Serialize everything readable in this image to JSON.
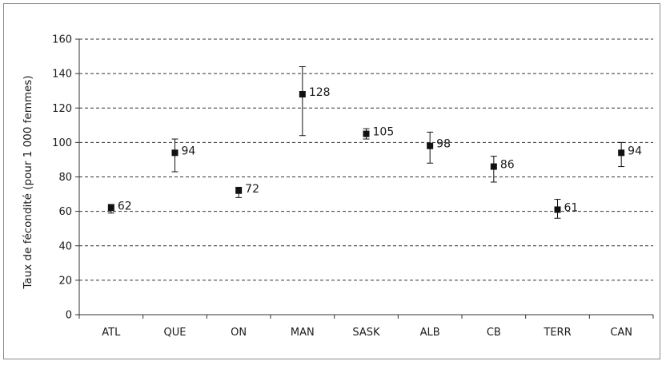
{
  "chart_data": {
    "type": "scatter",
    "title": "",
    "xlabel": "",
    "ylabel": "Taux de fécondité (pour 1 000 femmes)",
    "ylim": [
      0,
      160
    ],
    "y_ticks": [
      "0",
      "20",
      "40",
      "60",
      "80",
      "100",
      "120",
      "140",
      "160"
    ],
    "grid": true,
    "categories": [
      "ATL",
      "QUE",
      "ON",
      "MAN",
      "SASK",
      "ALB",
      "CB",
      "TERR",
      "CAN"
    ],
    "values": [
      62,
      94,
      72,
      128,
      105,
      98,
      86,
      61,
      94
    ],
    "value_labels": [
      "62",
      "94",
      "72",
      "128",
      "105",
      "98",
      "86",
      "61",
      "94"
    ],
    "error_low": [
      59,
      83,
      68,
      104,
      102,
      88,
      77,
      56,
      86
    ],
    "error_high": [
      64,
      102,
      74,
      144,
      108,
      106,
      92,
      67,
      100
    ],
    "marker_color": "#111111",
    "grid_color": "#333333"
  }
}
